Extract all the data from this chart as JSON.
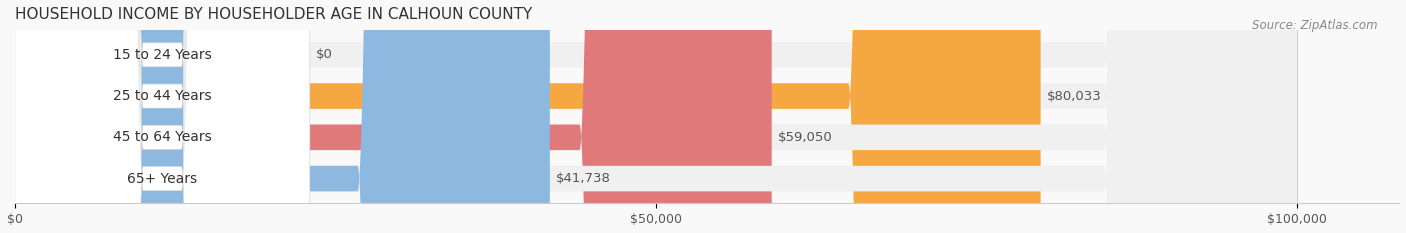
{
  "title": "HOUSEHOLD INCOME BY HOUSEHOLDER AGE IN CALHOUN COUNTY",
  "source": "Source: ZipAtlas.com",
  "categories": [
    "15 to 24 Years",
    "25 to 44 Years",
    "45 to 64 Years",
    "65+ Years"
  ],
  "values": [
    0,
    80033,
    59050,
    41738
  ],
  "bar_colors": [
    "#f4a0b0",
    "#f5a742",
    "#e07a7a",
    "#8db8e0"
  ],
  "bar_bg_color": "#f0f0f0",
  "label_bg_color": "#ffffff",
  "xlim": [
    0,
    100000
  ],
  "xticks": [
    0,
    50000,
    100000
  ],
  "xticklabels": [
    "$0",
    "$50,000",
    "$100,000"
  ],
  "bar_height": 0.62,
  "figsize": [
    14.06,
    2.33
  ],
  "title_fontsize": 11,
  "label_fontsize": 10,
  "value_fontsize": 9.5,
  "source_fontsize": 8.5
}
